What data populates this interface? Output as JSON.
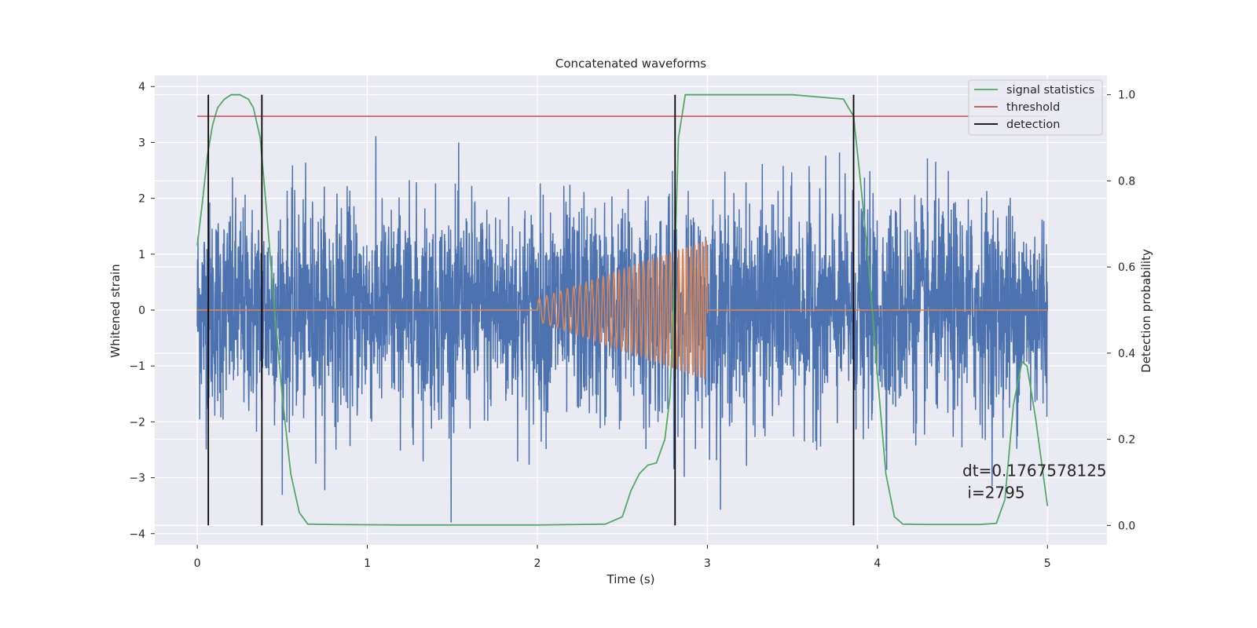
{
  "chart_data": {
    "type": "line",
    "title": "Concatenated waveforms",
    "xlabel": "Time (s)",
    "ylabel_left": "Whitened strain",
    "ylabel_right": "Detection probability",
    "xlim": [
      -0.25,
      5.35
    ],
    "ylim_left": [
      -4.2,
      4.2
    ],
    "ylim_right": [
      -0.045,
      1.045
    ],
    "xticks": [
      "0",
      "1",
      "2",
      "3",
      "4",
      "5"
    ],
    "yticks_left": [
      "4",
      "3",
      "2",
      "1",
      "0",
      "−1",
      "−2",
      "−3",
      "−4"
    ],
    "yticks_right": [
      "1.0",
      "0.8",
      "0.6",
      "0.4",
      "0.2",
      "0.0"
    ],
    "grid": true,
    "legend_position": "top-right",
    "series": [
      {
        "name": "",
        "axis": "left",
        "color": "#4c72b0",
        "kind": "whitened strain noise",
        "x_range": [
          0,
          5
        ],
        "approx_abs_max": 3.8
      },
      {
        "name": "",
        "axis": "left",
        "color": "#dd8452",
        "kind": "injected chirp",
        "x_range": [
          2.0,
          3.0
        ],
        "amp_start": 0.2,
        "amp_end": 1.25,
        "freq_start_hz": 22,
        "freq_end_hz": 45
      },
      {
        "name": "signal statistics",
        "axis": "right",
        "color": "#55a868",
        "x": [
          0.0,
          0.03,
          0.06,
          0.09,
          0.12,
          0.16,
          0.2,
          0.25,
          0.3,
          0.33,
          0.37,
          0.41,
          0.45,
          0.5,
          0.55,
          0.6,
          0.65,
          0.8,
          1.2,
          2.0,
          2.4,
          2.5,
          2.55,
          2.6,
          2.65,
          2.7,
          2.75,
          2.78,
          2.8,
          2.83,
          2.87,
          3.0,
          3.5,
          3.8,
          3.86,
          3.9,
          3.95,
          4.0,
          4.05,
          4.1,
          4.15,
          4.3,
          4.6,
          4.7,
          4.75,
          4.8,
          4.85,
          4.88,
          4.93,
          5.0
        ],
        "y": [
          0.65,
          0.75,
          0.86,
          0.93,
          0.97,
          0.99,
          1.0,
          1.0,
          0.99,
          0.97,
          0.9,
          0.72,
          0.52,
          0.3,
          0.12,
          0.03,
          0.003,
          0.002,
          0.001,
          0.001,
          0.003,
          0.02,
          0.08,
          0.12,
          0.14,
          0.145,
          0.2,
          0.3,
          0.5,
          0.9,
          1.0,
          1.0,
          1.0,
          0.99,
          0.95,
          0.8,
          0.6,
          0.35,
          0.12,
          0.02,
          0.003,
          0.002,
          0.002,
          0.005,
          0.06,
          0.28,
          0.38,
          0.37,
          0.25,
          0.045
        ]
      },
      {
        "name": "threshold",
        "axis": "right",
        "color": "#c44e52",
        "x": [
          0,
          5
        ],
        "y": [
          0.95,
          0.95
        ]
      },
      {
        "name": "detection",
        "axis": "right",
        "color": "#000000",
        "vlines_x": [
          0.065,
          0.38,
          2.81,
          3.86
        ],
        "y_range": [
          0.0,
          1.0
        ]
      }
    ],
    "annotation": {
      "line1": "dt=0.1767578125",
      "line2": " i=2795",
      "x": 4.5,
      "y": -3.0
    }
  },
  "colors": {
    "axes_bg": "#eaeaf2",
    "grid": "#ffffff",
    "noise": "#4c72b0",
    "chirp": "#dd8452",
    "stat": "#55a868",
    "threshold": "#c44e52",
    "detection": "#000000"
  }
}
